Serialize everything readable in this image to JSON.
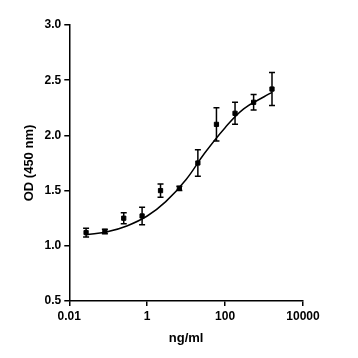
{
  "chart_data": {
    "type": "scatter",
    "x_label": "ng/ml",
    "y_label": "OD (450 nm)",
    "log": "x",
    "grid": false,
    "xlim": [
      0.01,
      10000
    ],
    "xticks": [
      0.01,
      1,
      100,
      10000
    ],
    "ylim": [
      0.5,
      3.0
    ],
    "yticks": [
      {
        "value": 0.5,
        "label": "0.5"
      },
      {
        "value": 1,
        "label": "1.0"
      },
      {
        "value": 1.5,
        "label": "1.5"
      },
      {
        "value": 2,
        "label": "2.0"
      },
      {
        "value": 2.5,
        "label": "2.5"
      },
      {
        "value": 3,
        "label": "3.0"
      }
    ],
    "series": [
      {
        "type": "scatter",
        "color": "#000000",
        "marker": "square",
        "x": [
          0.027,
          0.082,
          0.25,
          0.74,
          2.2,
          6.7,
          20,
          60,
          180,
          540,
          1600
        ],
        "values": [
          1.12,
          1.13,
          1.25,
          1.27,
          1.5,
          1.52,
          1.75,
          2.1,
          2.2,
          2.3,
          2.42
        ],
        "errors": [
          0.04,
          0.02,
          0.05,
          0.08,
          0.06,
          0.02,
          0.12,
          0.15,
          0.1,
          0.07,
          0.15
        ]
      },
      {
        "type": "line",
        "color": "#000000",
        "line_style": "solid",
        "x": [
          0.027,
          0.1,
          0.3,
          1,
          3,
          10,
          30,
          100,
          300,
          1000,
          1600
        ],
        "values": [
          1.1,
          1.13,
          1.18,
          1.27,
          1.4,
          1.6,
          1.84,
          2.07,
          2.24,
          2.35,
          2.39
        ]
      }
    ]
  }
}
